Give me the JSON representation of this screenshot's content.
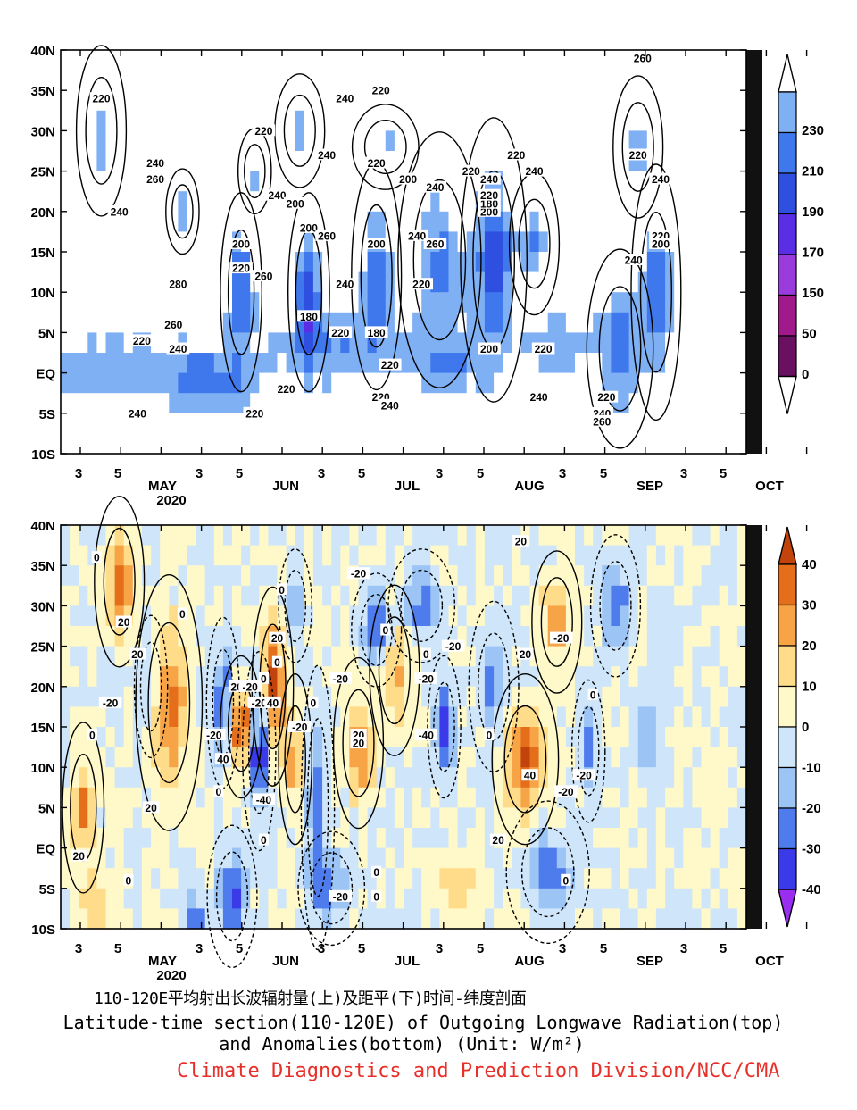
{
  "colors": {
    "olr": [
      "#6a1060",
      "#a01a8c",
      "#9a3cdc",
      "#5a2ee4",
      "#2f4fe0",
      "#3f78ec",
      "#7fb0f4",
      "#ffffff"
    ],
    "anom_neg": [
      "#9a2ef0",
      "#3a3ae8",
      "#4f7cec",
      "#9cc4f4",
      "#cfe6fa"
    ],
    "anom_pos": [
      "#fff8c8",
      "#ffdc8a",
      "#f6a446",
      "#e46e1a",
      "#c2440c"
    ],
    "credit": "#e8302a"
  },
  "captions": {
    "cn": "110-120E平均射出长波辐射量(上)及距平(下)时间-纬度剖面",
    "en1": "Latitude-time section(110-120E) of Outgoing Longwave Radiation(top)",
    "en2": "and Anomalies(bottom) (Unit: W/m²)",
    "credit": "Climate Diagnostics and Prediction Division/NCC/CMA"
  },
  "chart_data": [
    {
      "type": "heatmap",
      "title": "",
      "ylabel": "",
      "xlabel": "",
      "y_ticks": [
        "40N",
        "35N",
        "30N",
        "25N",
        "20N",
        "15N",
        "10N",
        "5N",
        "EQ",
        "5S",
        "10S"
      ],
      "x_day_ticks": [
        "3",
        "5",
        "",
        "3",
        "5",
        "",
        "3",
        "5",
        "",
        "3",
        "5",
        "",
        "3",
        "5",
        "",
        "3",
        "5",
        ""
      ],
      "x_month_ticks": [
        "MAY",
        "JUN",
        "JUL",
        "AUG",
        "SEP",
        "OCT"
      ],
      "x_year": "2020",
      "colorbar": {
        "levels": [
          "230",
          "210",
          "190",
          "170",
          "150",
          "50",
          "0"
        ],
        "extend": "both"
      },
      "contour_labels": [
        {
          "text": "220",
          "lat": 34,
          "day": 9
        },
        {
          "text": "240",
          "lat": 26,
          "day": 21
        },
        {
          "text": "260",
          "lat": 24,
          "day": 21
        },
        {
          "text": "240",
          "lat": 20,
          "day": 13
        },
        {
          "text": "280",
          "lat": 11,
          "day": 26
        },
        {
          "text": "260",
          "lat": 6,
          "day": 25
        },
        {
          "text": "240",
          "lat": 3,
          "day": 26
        },
        {
          "text": "220",
          "lat": 4,
          "day": 18
        },
        {
          "text": "240",
          "lat": -5,
          "day": 17
        },
        {
          "text": "200",
          "lat": 16,
          "day": 40
        },
        {
          "text": "220",
          "lat": 13,
          "day": 40
        },
        {
          "text": "260",
          "lat": 12,
          "day": 45
        },
        {
          "text": "220",
          "lat": 30,
          "day": 45
        },
        {
          "text": "240",
          "lat": 22,
          "day": 48
        },
        {
          "text": "200",
          "lat": 21,
          "day": 52
        },
        {
          "text": "200",
          "lat": 18,
          "day": 55
        },
        {
          "text": "260",
          "lat": 17,
          "day": 59
        },
        {
          "text": "240",
          "lat": 27,
          "day": 59
        },
        {
          "text": "240",
          "lat": 34,
          "day": 63
        },
        {
          "text": "220",
          "lat": 35,
          "day": 71
        },
        {
          "text": "220",
          "lat": 26,
          "day": 70
        },
        {
          "text": "200",
          "lat": 24,
          "day": 77
        },
        {
          "text": "240",
          "lat": 23,
          "day": 83
        },
        {
          "text": "180",
          "lat": 7,
          "day": 55
        },
        {
          "text": "220",
          "lat": 5,
          "day": 62
        },
        {
          "text": "240",
          "lat": 11,
          "day": 63
        },
        {
          "text": "200",
          "lat": 16,
          "day": 70
        },
        {
          "text": "180",
          "lat": 5,
          "day": 70
        },
        {
          "text": "220",
          "lat": 11,
          "day": 80
        },
        {
          "text": "240",
          "lat": 17,
          "day": 79
        },
        {
          "text": "260",
          "lat": 16,
          "day": 83
        },
        {
          "text": "220",
          "lat": -2,
          "day": 50
        },
        {
          "text": "220",
          "lat": -5,
          "day": 43
        },
        {
          "text": "220",
          "lat": 1,
          "day": 73
        },
        {
          "text": "220",
          "lat": -3,
          "day": 71
        },
        {
          "text": "240",
          "lat": -4,
          "day": 73
        },
        {
          "text": "200",
          "lat": 20,
          "day": 95
        },
        {
          "text": "180",
          "lat": 21,
          "day": 95
        },
        {
          "text": "220",
          "lat": 22,
          "day": 95
        },
        {
          "text": "240",
          "lat": 24,
          "day": 95
        },
        {
          "text": "220",
          "lat": 25,
          "day": 91
        },
        {
          "text": "220",
          "lat": 27,
          "day": 101
        },
        {
          "text": "240",
          "lat": 25,
          "day": 105
        },
        {
          "text": "200",
          "lat": 3,
          "day": 95
        },
        {
          "text": "220",
          "lat": 3,
          "day": 107
        },
        {
          "text": "240",
          "lat": -3,
          "day": 106
        },
        {
          "text": "220",
          "lat": -3,
          "day": 121
        },
        {
          "text": "240",
          "lat": -5,
          "day": 120
        },
        {
          "text": "260",
          "lat": -6,
          "day": 120
        },
        {
          "text": "220",
          "lat": 27,
          "day": 128
        },
        {
          "text": "240",
          "lat": 24,
          "day": 133
        },
        {
          "text": "220",
          "lat": 17,
          "day": 133
        },
        {
          "text": "200",
          "lat": 16,
          "day": 133
        },
        {
          "text": "240",
          "lat": 14,
          "day": 127
        },
        {
          "text": "260",
          "lat": 39,
          "day": 129
        }
      ]
    },
    {
      "type": "heatmap",
      "title": "",
      "ylabel": "",
      "xlabel": "",
      "y_ticks": [
        "40N",
        "35N",
        "30N",
        "25N",
        "20N",
        "15N",
        "10N",
        "5N",
        "EQ",
        "5S",
        "10S"
      ],
      "x_day_ticks": [
        "3",
        "5",
        "",
        "3",
        "5",
        "",
        "3",
        "5",
        "",
        "3",
        "5",
        "",
        "3",
        "5",
        "",
        "3",
        "5",
        ""
      ],
      "x_month_ticks": [
        "MAY",
        "JUN",
        "JUL",
        "AUG",
        "SEP",
        "OCT"
      ],
      "x_year": "2020",
      "colorbar": {
        "levels": [
          "40",
          "30",
          "20",
          "10",
          "0",
          "-10",
          "-20",
          "-30",
          "-40"
        ],
        "extend": "both"
      },
      "contour_labels": [
        {
          "text": "0",
          "lat": 36,
          "day": 8
        },
        {
          "text": "20",
          "lat": 28,
          "day": 14
        },
        {
          "text": "20",
          "lat": 24,
          "day": 17
        },
        {
          "text": "0",
          "lat": 29,
          "day": 27
        },
        {
          "text": "-20",
          "lat": 18,
          "day": 11
        },
        {
          "text": "0",
          "lat": 14,
          "day": 7
        },
        {
          "text": "20",
          "lat": 5,
          "day": 20
        },
        {
          "text": "20",
          "lat": -1,
          "day": 4
        },
        {
          "text": "0",
          "lat": -4,
          "day": 15
        },
        {
          "text": "-20",
          "lat": 14,
          "day": 34
        },
        {
          "text": "40",
          "lat": 11,
          "day": 36
        },
        {
          "text": "0",
          "lat": 7,
          "day": 35
        },
        {
          "text": "20",
          "lat": 20,
          "day": 39
        },
        {
          "text": "-20",
          "lat": 20,
          "day": 42
        },
        {
          "text": "0",
          "lat": 21,
          "day": 45
        },
        {
          "text": "-20",
          "lat": 18,
          "day": 44
        },
        {
          "text": "40",
          "lat": 18,
          "day": 47
        },
        {
          "text": "-40",
          "lat": 6,
          "day": 45
        },
        {
          "text": "20",
          "lat": 26,
          "day": 48
        },
        {
          "text": "0",
          "lat": 23,
          "day": 48
        },
        {
          "text": "0",
          "lat": 32,
          "day": 49
        },
        {
          "text": "-20",
          "lat": 15,
          "day": 53
        },
        {
          "text": "0",
          "lat": 1,
          "day": 45
        },
        {
          "text": "0",
          "lat": 18,
          "day": 56
        },
        {
          "text": "-20",
          "lat": 34,
          "day": 66
        },
        {
          "text": "0",
          "lat": 27,
          "day": 72
        },
        {
          "text": "-20",
          "lat": 21,
          "day": 62
        },
        {
          "text": "20",
          "lat": 14,
          "day": 66
        },
        {
          "text": "20",
          "lat": 13,
          "day": 66
        },
        {
          "text": "0",
          "lat": -3,
          "day": 70
        },
        {
          "text": "-20",
          "lat": -6,
          "day": 62
        },
        {
          "text": "0",
          "lat": -6,
          "day": 70
        },
        {
          "text": "-20",
          "lat": 21,
          "day": 81
        },
        {
          "text": "-40",
          "lat": 14,
          "day": 81
        },
        {
          "text": "0",
          "lat": 24,
          "day": 81
        },
        {
          "text": "-20",
          "lat": 25,
          "day": 87
        },
        {
          "text": "0",
          "lat": 14,
          "day": 95
        },
        {
          "text": "40",
          "lat": 9,
          "day": 104
        },
        {
          "text": "20",
          "lat": 1,
          "day": 97
        },
        {
          "text": "20",
          "lat": 24,
          "day": 103
        },
        {
          "text": "20",
          "lat": 38,
          "day": 102
        },
        {
          "text": "-20",
          "lat": 26,
          "day": 111
        },
        {
          "text": "-20",
          "lat": 7,
          "day": 112
        },
        {
          "text": "-20",
          "lat": 9,
          "day": 116
        },
        {
          "text": "0",
          "lat": -4,
          "day": 112
        },
        {
          "text": "0",
          "lat": 19,
          "day": 118
        }
      ]
    }
  ]
}
